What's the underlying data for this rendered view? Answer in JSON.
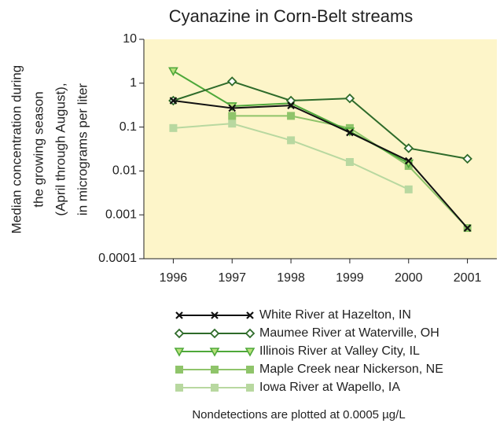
{
  "chart_data": {
    "type": "line",
    "title": "Cyanazine in Corn-Belt streams",
    "y_label": [
      "Median concentration during",
      "the growing season",
      "(April through August),",
      "in micrograms per liter"
    ],
    "categories": [
      "1996",
      "1997",
      "1998",
      "1999",
      "2000",
      "2001"
    ],
    "log_scale_y": true,
    "ylim": [
      0.0001,
      10
    ],
    "yticks": [
      0.0001,
      0.001,
      0.01,
      0.1,
      1,
      10
    ],
    "background": "#fdf5c9",
    "series": [
      {
        "name": "White River at Hazelton, IN",
        "color": "#111111",
        "marker": "x",
        "values": [
          0.4,
          0.27,
          0.31,
          0.075,
          0.017,
          0.0005
        ]
      },
      {
        "name": "Maumee River at Waterville, OH",
        "color": "#2e6b2a",
        "marker": "diamond",
        "values": [
          0.4,
          1.1,
          0.4,
          0.45,
          0.033,
          0.019
        ]
      },
      {
        "name": "Illinois River at Valley City, IL",
        "color": "#4ea83a",
        "marker": "triangle",
        "values": [
          1.9,
          0.3,
          0.35,
          0.08,
          0.015,
          null
        ]
      },
      {
        "name": "Maple Creek near Nickerson, NE",
        "color": "#8fc46a",
        "marker": "square",
        "values": [
          null,
          0.18,
          0.18,
          0.095,
          0.013,
          0.0005
        ]
      },
      {
        "name": "Iowa River at Wapello, IA",
        "color": "#b8d8a0",
        "marker": "square",
        "values": [
          0.095,
          0.12,
          0.05,
          0.016,
          0.0038,
          null
        ]
      }
    ],
    "footnote": "Nondetections are plotted at 0.0005 µg/L"
  }
}
